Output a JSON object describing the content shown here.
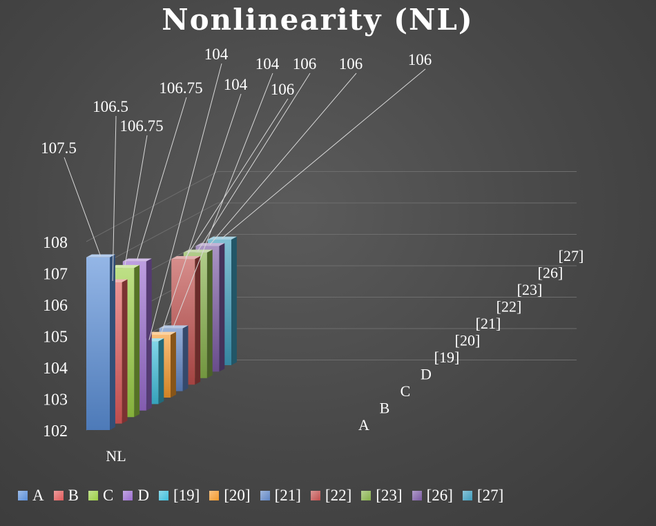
{
  "chart_data": {
    "type": "bar",
    "title": "Nonlinearity (NL)",
    "category": "NL",
    "series": [
      {
        "name": "A",
        "value": 107.5,
        "color": "#5b8fd9"
      },
      {
        "name": "B",
        "value": 106.5,
        "color": "#e05a5a"
      },
      {
        "name": "C",
        "value": 106.75,
        "color": "#9bcf45"
      },
      {
        "name": "D",
        "value": 106.75,
        "color": "#9a6ccf"
      },
      {
        "name": "[19]",
        "value": 104,
        "color": "#3fbfdc"
      },
      {
        "name": "[20]",
        "value": 104,
        "color": "#f59a2d"
      },
      {
        "name": "[21]",
        "value": 104,
        "color": "#5f85c4"
      },
      {
        "name": "[22]",
        "value": 106,
        "color": "#c04f4d"
      },
      {
        "name": "[23]",
        "value": 106,
        "color": "#86b04a"
      },
      {
        "name": "[26]",
        "value": 106,
        "color": "#7b5aa3"
      },
      {
        "name": "[27]",
        "value": 106,
        "color": "#3e9cbc"
      }
    ],
    "data_labels": [
      "107.5",
      "106.5",
      "106.75",
      "106.75",
      "104",
      "104",
      "104",
      "106",
      "106",
      "106",
      "106"
    ],
    "yaxis": {
      "min": 102,
      "max": 108,
      "ticks": [
        "102",
        "103",
        "104",
        "105",
        "106",
        "107",
        "108"
      ]
    },
    "depth_axis_labels": [
      "A",
      "B",
      "C",
      "D",
      "[19]",
      "[20]",
      "[21]",
      "[22]",
      "[23]",
      "[26]",
      "[27]"
    ],
    "legend_position": "bottom",
    "grid": true
  }
}
